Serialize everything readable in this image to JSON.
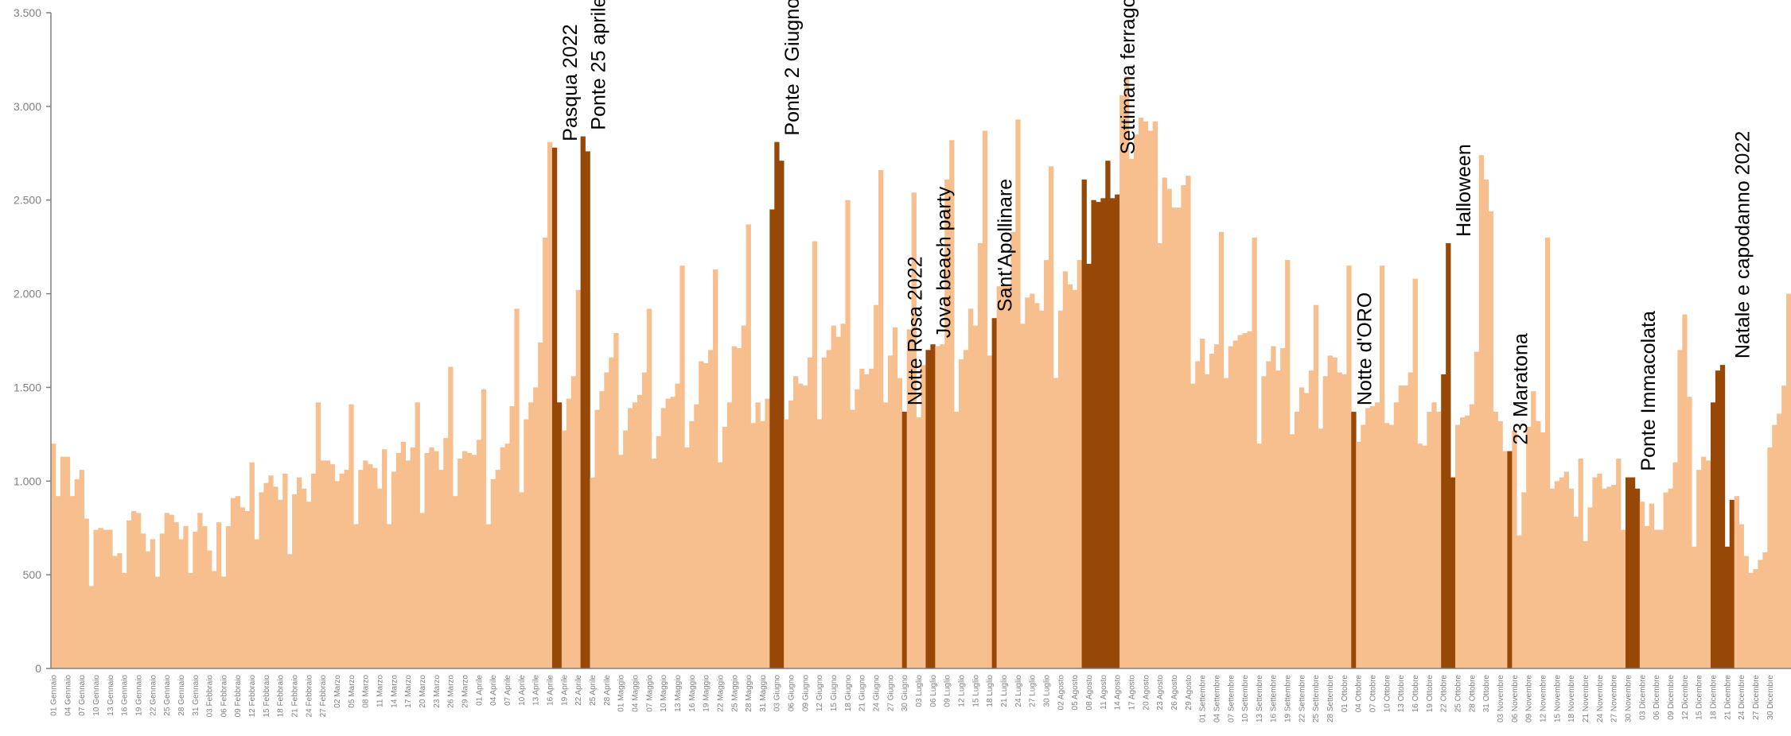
{
  "chart_data": {
    "type": "bar",
    "title": "",
    "xlabel": "",
    "ylabel": "",
    "ylim": [
      0,
      3500
    ],
    "yticks": [
      {
        "value": 0,
        "label": "0"
      },
      {
        "value": 500,
        "label": "500"
      },
      {
        "value": 1000,
        "label": "1.000"
      },
      {
        "value": 1500,
        "label": "1.500"
      },
      {
        "value": 2000,
        "label": "2.000"
      },
      {
        "value": 2500,
        "label": "2.500"
      },
      {
        "value": 3000,
        "label": "3.000"
      },
      {
        "value": 3500,
        "label": "3.500"
      }
    ],
    "grid": false,
    "legend": "none",
    "colors": {
      "base": "#F8BF8E",
      "highlight": "#974706",
      "axis": "#7f7f7f",
      "text": "#000000"
    },
    "x_tick_labels": [
      "01 Gennaio",
      "04 Gennaio",
      "07 Gennaio",
      "10 Gennaio",
      "13 Gennaio",
      "16 Gennaio",
      "19 Gennaio",
      "22 Gennaio",
      "25 Gennaio",
      "28 Gennaio",
      "31 Gennaio",
      "03 Febbraio",
      "06 Febbraio",
      "09 Febbraio",
      "12 Febbraio",
      "15 Febbraio",
      "18 Febbraio",
      "21 Febbraio",
      "24 Febbraio",
      "27 Febbraio",
      "02 Marzo",
      "05 Marzo",
      "08 Marzo",
      "11 Marzo",
      "14 Marzo",
      "17 Marzo",
      "20 Marzo",
      "23 Marzo",
      "26 Marzo",
      "29 Marzo",
      "01 Aprile",
      "04 Aprile",
      "07 Aprile",
      "10 Aprile",
      "13 Aprile",
      "16 Aprile",
      "19 Aprile",
      "22 Aprile",
      "25 Aprile",
      "28 Aprile",
      "01 Maggio",
      "04 Maggio",
      "07 Maggio",
      "10 Maggio",
      "13 Maggio",
      "16 Maggio",
      "19 Maggio",
      "22 Maggio",
      "25 Maggio",
      "28 Maggio",
      "31 Maggio",
      "03 Giugno",
      "06 Giugno",
      "09 Giugno",
      "12 Giugno",
      "15 Giugno",
      "18 Giugno",
      "21 Giugno",
      "24 Giugno",
      "27 Giugno",
      "30 Giugno",
      "03 Luglio",
      "06 Luglio",
      "09 Luglio",
      "12 Luglio",
      "15 Luglio",
      "18 Luglio",
      "21 Luglio",
      "24 Luglio",
      "27 Luglio",
      "30 Luglio",
      "02 Agosto",
      "05 Agosto",
      "08 Agosto",
      "11 Agosto",
      "14 Agosto",
      "17 Agosto",
      "20 Agosto",
      "23 Agosto",
      "26 Agosto",
      "29 Agosto",
      "01 Settembre",
      "04 Settembre",
      "07 Settembre",
      "10 Settembre",
      "13 Settembre",
      "16 Settembre",
      "19 Settembre",
      "22 Settembre",
      "25 Settembre",
      "28 Settembre",
      "01 Ottobre",
      "04 Ottobre",
      "07 Ottobre",
      "10 Ottobre",
      "13 Ottobre",
      "16 Ottobre",
      "19 Ottobre",
      "22 Ottobre",
      "25 Ottobre",
      "28 Ottobre",
      "31 Ottobre",
      "03 Novembre",
      "06 Novembre",
      "09 Novembre",
      "12 Novembre",
      "15 Novembre",
      "18 Novembre",
      "21 Novembre",
      "24 Novembre",
      "27 Novembre",
      "30 Novembre",
      "03 Dicembre",
      "06 Dicembre",
      "09 Dicembre",
      "12 Dicembre",
      "15 Dicembre",
      "18 Dicembre",
      "21 Dicembre",
      "24 Dicembre",
      "27 Dicembre",
      "30 Dicembre"
    ],
    "values": [
      1200,
      920,
      1130,
      1130,
      920,
      1010,
      1060,
      800,
      440,
      740,
      750,
      740,
      740,
      600,
      615,
      510,
      790,
      840,
      830,
      720,
      625,
      690,
      490,
      720,
      830,
      820,
      780,
      690,
      760,
      510,
      730,
      830,
      760,
      630,
      520,
      780,
      490,
      760,
      910,
      920,
      860,
      840,
      1100,
      690,
      940,
      990,
      1030,
      970,
      900,
      1040,
      610,
      930,
      1020,
      960,
      890,
      1040,
      1420,
      1110,
      1110,
      1090,
      1000,
      1040,
      1060,
      1410,
      770,
      1060,
      1110,
      1090,
      1070,
      960,
      1170,
      770,
      1050,
      1150,
      1210,
      1110,
      1180,
      1420,
      830,
      1150,
      1180,
      1160,
      1060,
      1230,
      1610,
      920,
      1120,
      1160,
      1150,
      1140,
      1220,
      1490,
      770,
      1010,
      1060,
      1180,
      1200,
      1400,
      1920,
      940,
      1330,
      1420,
      1500,
      1740,
      2300,
      2810,
      2780,
      1420,
      1270,
      1440,
      1560,
      2020,
      2840,
      2760,
      1020,
      1380,
      1480,
      1580,
      1660,
      1790,
      1140,
      1270,
      1390,
      1420,
      1460,
      1580,
      1920,
      1120,
      1240,
      1390,
      1440,
      1450,
      1520,
      2150,
      1180,
      1320,
      1410,
      1640,
      1630,
      1700,
      2130,
      1100,
      1290,
      1420,
      1720,
      1710,
      1830,
      2370,
      1310,
      1420,
      1320,
      1440,
      2450,
      2810,
      2710,
      1330,
      1430,
      1560,
      1520,
      1510,
      1660,
      2280,
      1330,
      1660,
      1700,
      1830,
      1770,
      1840,
      2500,
      1380,
      1490,
      1600,
      1570,
      1600,
      1940,
      2660,
      1420,
      1670,
      1820,
      1550,
      1370,
      1810,
      2540,
      1340,
      1620,
      1700,
      1730,
      1720,
      1730,
      2610,
      2820,
      1370,
      1650,
      1700,
      1920,
      1830,
      2270,
      2870,
      1670,
      1870,
      2040,
      2050,
      2040,
      2330,
      2930,
      1840,
      1980,
      2000,
      1950,
      1910,
      2180,
      2680,
      1550,
      1910,
      2120,
      2050,
      2020,
      2180,
      2610,
      2160,
      2500,
      2490,
      2510,
      2710,
      2510,
      2530,
      3060,
      3160,
      2720,
      2850,
      2940,
      2920,
      2870,
      2920,
      2270,
      2620,
      2560,
      2460,
      2460,
      2580,
      2630,
      1520,
      1640,
      1760,
      1570,
      1680,
      1730,
      2330,
      1550,
      1720,
      1750,
      1780,
      1790,
      1800,
      2300,
      1200,
      1560,
      1640,
      1720,
      1590,
      1710,
      2180,
      1250,
      1370,
      1500,
      1470,
      1590,
      1940,
      1280,
      1560,
      1670,
      1660,
      1580,
      1570,
      2150,
      1370,
      1210,
      1300,
      1390,
      1400,
      1420,
      2150,
      1310,
      1300,
      1420,
      1510,
      1510,
      1580,
      2080,
      1200,
      1190,
      1370,
      1420,
      1370,
      1570,
      2270,
      1020,
      1300,
      1340,
      1350,
      1410,
      1690,
      2740,
      2610,
      2440,
      1370,
      1320,
      1160,
      1160,
      1270,
      710,
      940,
      1290,
      1480,
      1320,
      1260,
      2300,
      960,
      1000,
      1020,
      1050,
      960,
      810,
      1120,
      680,
      860,
      1020,
      1040,
      960,
      970,
      980,
      1120,
      740,
      1020,
      1020,
      960,
      890,
      760,
      880,
      740,
      740,
      940,
      960,
      1100,
      1700,
      1890,
      1450,
      650,
      1060,
      1130,
      1110,
      1420,
      1590,
      1620,
      650,
      900,
      920,
      770,
      600,
      510,
      530,
      580,
      620,
      1180,
      1300,
      1360,
      1510,
      2000
    ],
    "highlights": [
      {
        "label": "Pasqua 2022",
        "from": 106,
        "to": 107
      },
      {
        "label": "Ponte 25 aprile",
        "from": 112,
        "to": 113
      },
      {
        "label": "Ponte 2 Giugno",
        "from": 152,
        "to": 154
      },
      {
        "label": "Notte Rosa 2022",
        "from": 180,
        "to": 180
      },
      {
        "label": "Jova beach party",
        "from": 185,
        "to": 186
      },
      {
        "label": "Sant'Apollinare",
        "from": 199,
        "to": 199
      },
      {
        "label": "Settimana ferragosto",
        "from": 218,
        "to": 225
      },
      {
        "label": "Notte d'ORO",
        "from": 275,
        "to": 275
      },
      {
        "label": "Halloween",
        "from": 294,
        "to": 296
      },
      {
        "label": "23 Maratona",
        "from": 308,
        "to": 308
      },
      {
        "label": "Ponte Immacolata",
        "from": 333,
        "to": 335
      },
      {
        "label": "Natale e capodanno 2022",
        "from": 351,
        "to": 355
      }
    ]
  }
}
